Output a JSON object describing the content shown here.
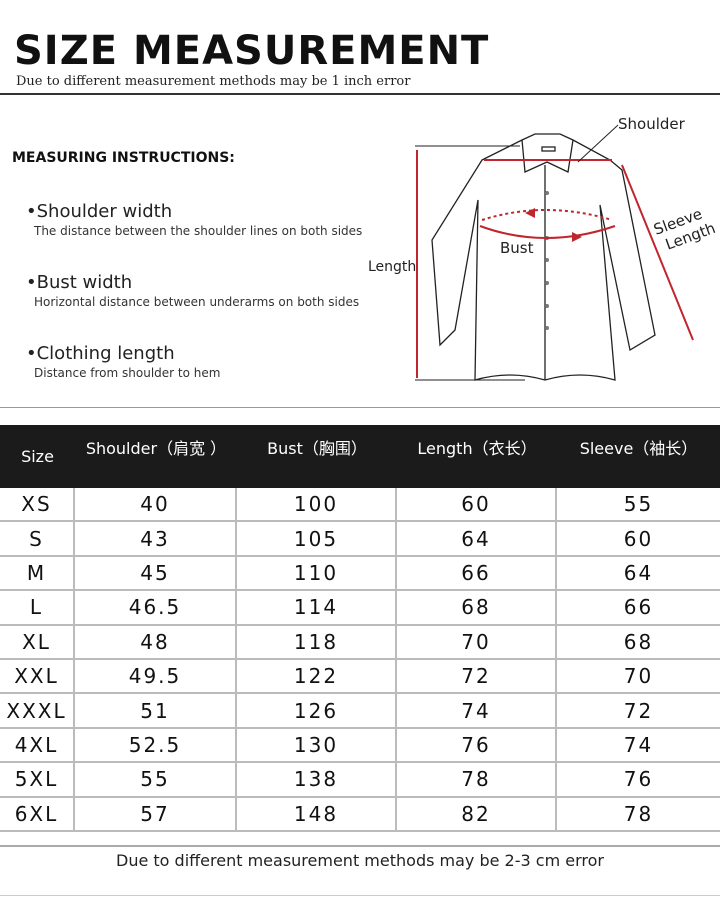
{
  "header": {
    "title": "SIZE  MEASUREMENT",
    "subtitle": "Due to different measurement methods may be 1 inch error"
  },
  "instructions": {
    "title": "MEASURING INSTRUCTIONS:",
    "items": [
      {
        "heading": "•Shoulder width",
        "desc": "The distance between the shoulder lines on both sides"
      },
      {
        "heading": "•Bust width",
        "desc": "Horizontal distance between underarms on both sides"
      },
      {
        "heading": "•Clothing length",
        "desc": "Distance from shoulder to hem"
      }
    ]
  },
  "diagram": {
    "labels": {
      "shoulder": "Shoulder",
      "bust": "Bust",
      "length": "Length",
      "sleeve1": "Sleeve",
      "sleeve2": "Length"
    },
    "accent": "#c0262d"
  },
  "table": {
    "headers": [
      "Size",
      "Shoulder（肩宽 ）",
      "Bust（胸围）",
      "Length（衣长）",
      "Sleeve（袖长）"
    ],
    "rows": [
      [
        "XS",
        "40",
        "100",
        "60",
        "55"
      ],
      [
        "S",
        "43",
        "105",
        "64",
        "60"
      ],
      [
        "M",
        "45",
        "110",
        "66",
        "64"
      ],
      [
        "L",
        "46.5",
        "114",
        "68",
        "66"
      ],
      [
        "XL",
        "48",
        "118",
        "70",
        "68"
      ],
      [
        "XXL",
        "49.5",
        "122",
        "72",
        "70"
      ],
      [
        "XXXL",
        "51",
        "126",
        "74",
        "72"
      ],
      [
        "4XL",
        "52.5",
        "130",
        "76",
        "74"
      ],
      [
        "5XL",
        "55",
        "138",
        "78",
        "76"
      ],
      [
        "6XL",
        "57",
        "148",
        "82",
        "78"
      ]
    ]
  },
  "footer": "Due to different measurement methods may be 2-3 cm error"
}
